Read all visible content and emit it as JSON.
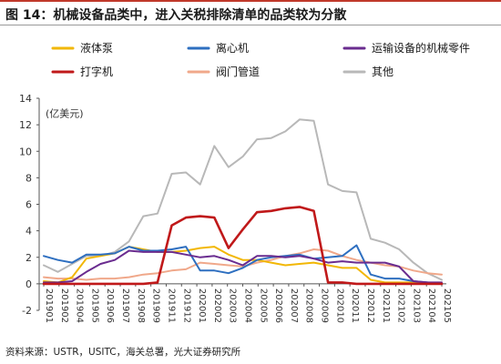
{
  "title": "图 14：机械设备品类中，进入关税排除清单的品类较为分散",
  "source": "资料来源：USTR，USITC，海关总署，光大证券研究所",
  "chart_data": {
    "type": "line",
    "ylabel": "(亿美元)",
    "ylim": [
      -2,
      14
    ],
    "yticks": [
      -2,
      0,
      2,
      4,
      6,
      8,
      10,
      12,
      14
    ],
    "grid": false,
    "legend_position": "top",
    "x": [
      "201901",
      "201902",
      "201903",
      "201904",
      "201905",
      "201906",
      "201907",
      "201908",
      "201909",
      "201910",
      "201911",
      "201912",
      "202001",
      "202002",
      "202003",
      "202004",
      "202005",
      "202006",
      "202007",
      "202008",
      "202009",
      "202010",
      "202011",
      "202012",
      "202101",
      "202102",
      "202103",
      "202104",
      "202105"
    ],
    "x_tick_labels": [
      "201901",
      "201902",
      "201904",
      "201905",
      "201906",
      "201907",
      "201908",
      "201909",
      "201911",
      "201912",
      "202001",
      "202002",
      "202003",
      "202004",
      "202005",
      "202006",
      "202007",
      "202008",
      "202009",
      "202010",
      "202011",
      "202012",
      "202101",
      "202102",
      "202103",
      "202104",
      "202105"
    ],
    "series": [
      {
        "name": "液体泵",
        "color": "#f2b705",
        "values": [
          0.2,
          0.1,
          0.5,
          1.9,
          2.1,
          2.3,
          2.8,
          2.6,
          2.4,
          2.4,
          2.5,
          2.7,
          2.8,
          2.2,
          1.8,
          1.8,
          1.6,
          1.4,
          1.5,
          1.6,
          1.4,
          1.2,
          1.2,
          0.3,
          0.1,
          0.1,
          0.1,
          0.0,
          0.0
        ]
      },
      {
        "name": "离心机",
        "color": "#2e6fc0",
        "values": [
          2.1,
          1.8,
          1.6,
          2.2,
          2.2,
          2.3,
          2.8,
          2.5,
          2.5,
          2.6,
          2.8,
          1.0,
          1.0,
          0.8,
          1.2,
          1.8,
          2.0,
          2.1,
          2.2,
          1.9,
          2.0,
          2.1,
          2.9,
          0.7,
          0.4,
          0.4,
          0.2,
          0.1,
          0.0
        ]
      },
      {
        "name": "运输设备的机械零件",
        "color": "#6a2c8f",
        "values": [
          0.1,
          0.1,
          0.2,
          0.9,
          1.5,
          1.8,
          2.5,
          2.4,
          2.4,
          2.4,
          2.2,
          2.0,
          2.1,
          1.8,
          1.4,
          2.1,
          2.1,
          2.0,
          2.1,
          1.9,
          1.6,
          1.7,
          1.6,
          1.6,
          1.6,
          1.3,
          0.2,
          0.1,
          0.1
        ]
      },
      {
        "name": "阀门管道",
        "color": "#f0a88a",
        "values": [
          0.5,
          0.4,
          0.4,
          0.3,
          0.4,
          0.4,
          0.5,
          0.7,
          0.8,
          1.0,
          1.1,
          1.6,
          1.5,
          1.4,
          1.3,
          1.6,
          1.8,
          2.1,
          2.3,
          2.6,
          2.5,
          2.1,
          1.8,
          1.6,
          1.4,
          1.3,
          1.0,
          0.8,
          0.7
        ]
      },
      {
        "name": "打字机",
        "color": "#c0191a",
        "values": [
          0,
          0,
          0,
          0,
          0,
          0,
          0,
          0,
          0.1,
          4.4,
          5.0,
          5.1,
          5.0,
          2.7,
          4.1,
          5.4,
          5.5,
          5.7,
          5.8,
          5.5,
          0.1,
          0.1,
          0,
          0,
          0,
          0,
          0,
          0,
          0
        ]
      },
      {
        "name": "其他",
        "color": "#b8b8b8",
        "values": [
          1.4,
          0.9,
          1.5,
          2.1,
          2.1,
          2.4,
          3.2,
          5.1,
          5.3,
          8.3,
          8.4,
          7.5,
          10.4,
          8.8,
          9.6,
          10.9,
          11.0,
          11.5,
          12.4,
          12.3,
          7.5,
          7.0,
          6.9,
          3.4,
          3.1,
          2.6,
          1.6,
          0.8,
          0.3
        ]
      }
    ]
  }
}
